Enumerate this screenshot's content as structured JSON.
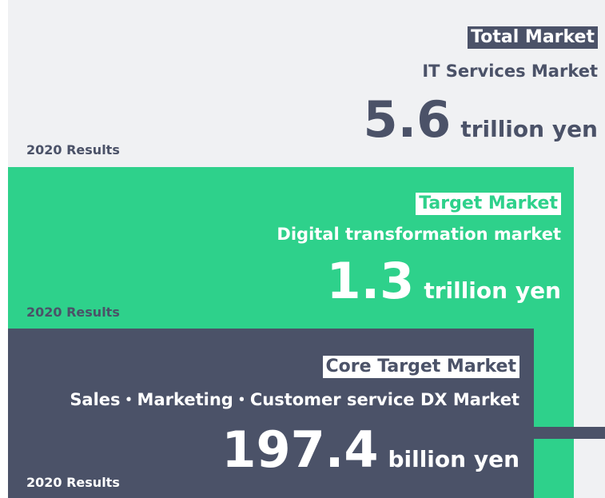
{
  "markets": [
    {
      "label": "Total Market",
      "name": "IT Services Market",
      "value": 5.6,
      "unit": "trillion yen",
      "period": "2020 Results"
    },
    {
      "label": "Target Market",
      "name": "Digital transformation market",
      "value": 1.3,
      "unit": "trillion yen",
      "period": "2020 Results"
    },
    {
      "label": "Core Target Market",
      "name": "Sales・Marketing・Customer service DX Market",
      "value": 197.4,
      "unit": "billion yen",
      "period": "2020 Results"
    }
  ]
}
